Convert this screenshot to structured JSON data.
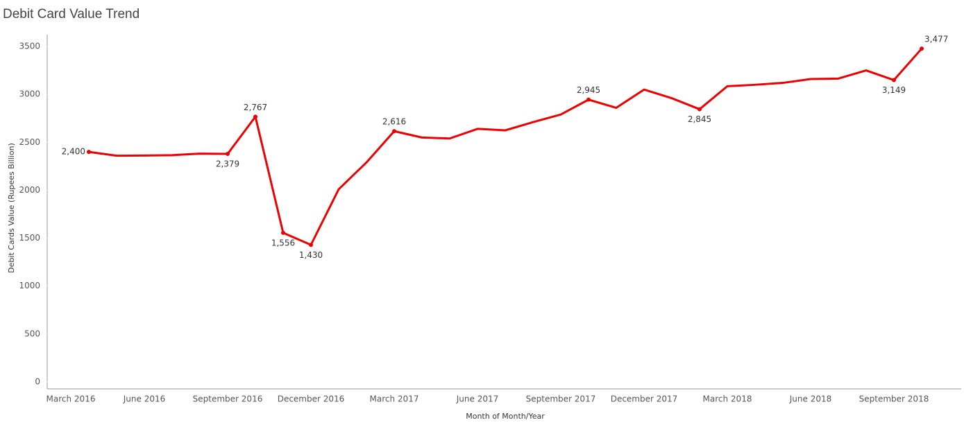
{
  "chart_data": {
    "type": "line",
    "title": "Debit Card Value Trend",
    "x_label": "Month of Month/Year",
    "y_label": "Debit Cards Value (Rupees Billion)",
    "categories": [
      "March 2016",
      null,
      null,
      "June 2016",
      null,
      null,
      "September 2016",
      null,
      null,
      "December 2016",
      null,
      null,
      "March 2017",
      null,
      null,
      "June 2017",
      null,
      null,
      "September 2017",
      null,
      null,
      "December 2017",
      null,
      null,
      "March 2018",
      null,
      null,
      "June 2018",
      null,
      null,
      "September 2018",
      null
    ],
    "series": [
      {
        "name": "Debit Cards Value",
        "color": "#ee0000",
        "values": [
          null,
          2400,
          2360,
          2362,
          2366,
          2382,
          2379,
          2767,
          1556,
          1430,
          2010,
          2290,
          2616,
          2550,
          2540,
          2640,
          2625,
          2710,
          2790,
          2945,
          2860,
          3050,
          2960,
          2845,
          3085,
          3100,
          3120,
          3160,
          3165,
          3250,
          3149,
          3477
        ],
        "value_labels": [
          null,
          "2,400",
          null,
          null,
          null,
          null,
          "2,379",
          "2,767",
          "1,556",
          "1,430",
          null,
          null,
          "2,616",
          null,
          null,
          null,
          null,
          null,
          null,
          "2,945",
          null,
          null,
          null,
          "2,845",
          null,
          null,
          null,
          null,
          null,
          null,
          "3,149",
          "3,477"
        ]
      }
    ],
    "ylim": [
      0,
      3500
    ],
    "yticks": [
      0,
      500,
      1000,
      1500,
      2000,
      2500,
      3000,
      3500
    ],
    "grid": false
  }
}
